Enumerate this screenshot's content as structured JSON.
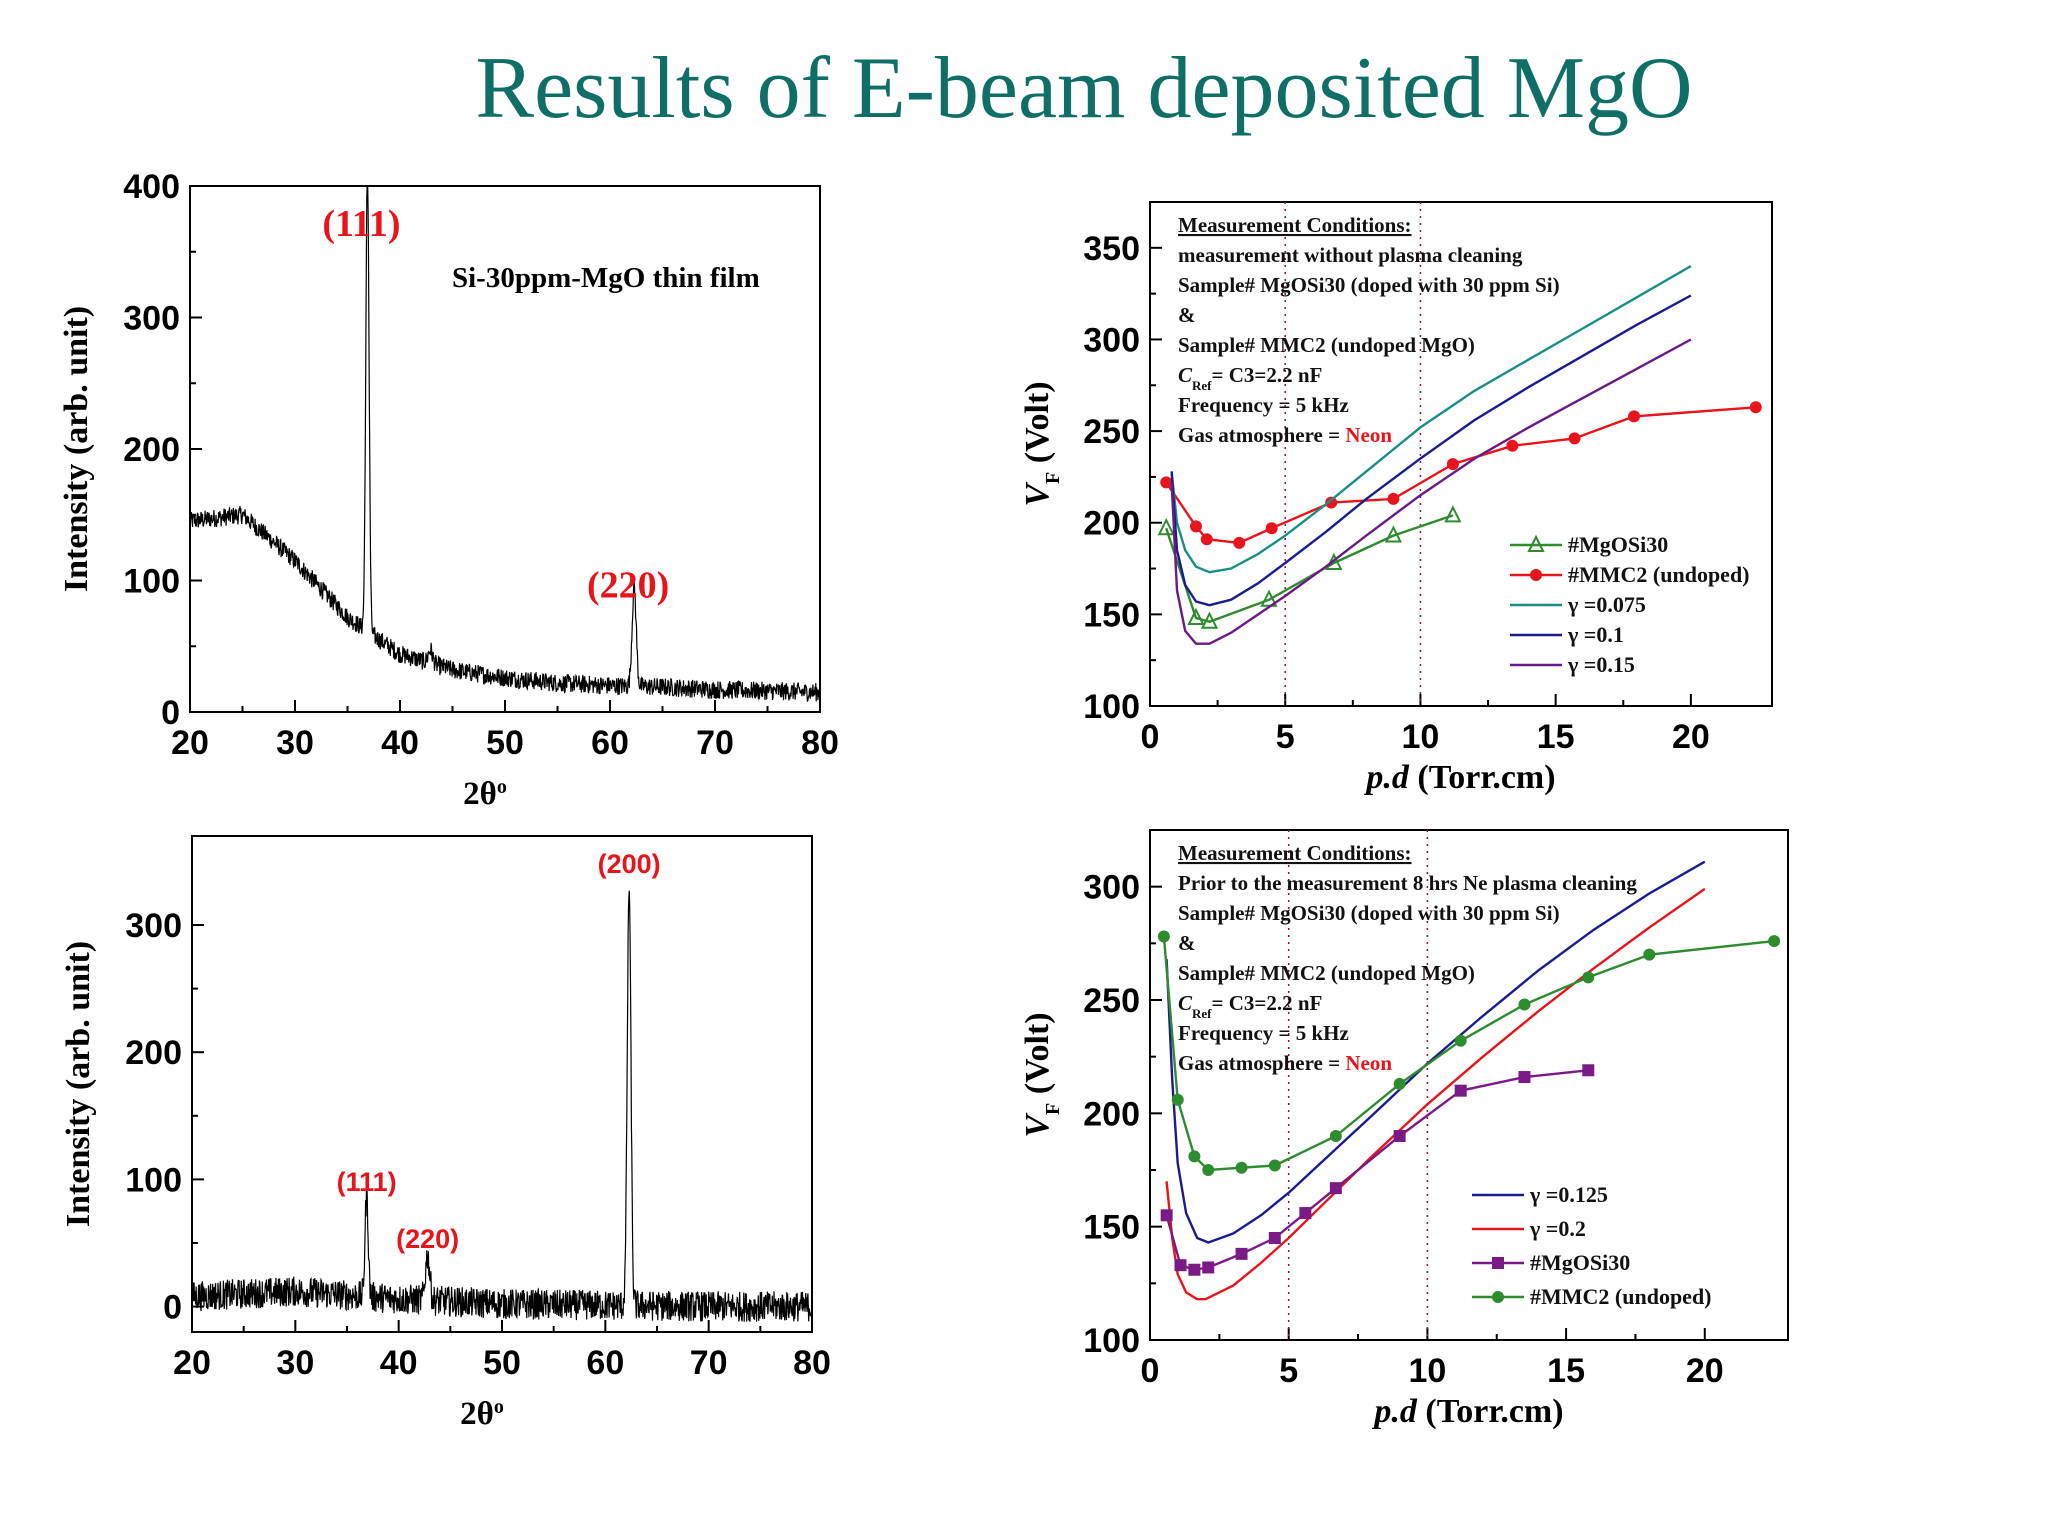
{
  "slide": {
    "title": "Results of E-beam deposited MgO"
  },
  "chart_data": [
    {
      "id": "xrd1",
      "type": "line",
      "xlabel": "2θ",
      "xlabel_sup": "o",
      "ylabel": "Intensity (arb. unit)",
      "xlim": [
        20,
        80
      ],
      "ylim": [
        0,
        400
      ],
      "xticks": [
        20,
        30,
        40,
        50,
        60,
        70,
        80
      ],
      "yticks": [
        0,
        100,
        200,
        300,
        400
      ],
      "annotation": "Si-30ppm-MgO thin film",
      "peaks": [
        {
          "label": "(111)",
          "x": 36.9,
          "y": 350,
          "width": 0.22
        },
        {
          "label": "(220)",
          "x": 62.3,
          "y": 75,
          "width": 0.28
        }
      ],
      "extra_bumps": [
        {
          "x": 42.9,
          "y": 10,
          "width": 0.3
        }
      ],
      "background": {
        "x": [
          20,
          25,
          30,
          35,
          40,
          45,
          50,
          55,
          60,
          65,
          70,
          75,
          80
        ],
        "y": [
          145,
          150,
          115,
          72,
          44,
          32,
          26,
          22,
          20,
          19,
          17,
          16,
          15
        ],
        "noise": 7
      },
      "peak_label_color": "#e8141b"
    },
    {
      "id": "xrd2",
      "type": "line",
      "xlabel": "2θ",
      "xlabel_sup": "o",
      "ylabel": "Intensity (arb. unit)",
      "xlim": [
        20,
        80
      ],
      "ylim": [
        -20,
        370
      ],
      "xticks": [
        20,
        30,
        40,
        50,
        60,
        70,
        80
      ],
      "yticks": [
        0,
        100,
        200,
        300
      ],
      "peaks": [
        {
          "label": "(111)",
          "x": 36.9,
          "y": 80,
          "width": 0.22
        },
        {
          "label": "(220)",
          "x": 42.8,
          "y": 35,
          "width": 0.3
        },
        {
          "label": "(200)",
          "x": 62.3,
          "y": 330,
          "width": 0.25
        }
      ],
      "background": {
        "x": [
          20,
          30,
          40,
          50,
          60,
          70,
          80
        ],
        "y": [
          8,
          12,
          6,
          2,
          1,
          0,
          0
        ],
        "noise": 12
      },
      "peak_label_color": "#e8141b"
    },
    {
      "id": "vf1",
      "type": "scatter",
      "xlabel": "p.d (Torr.cm)",
      "ylabel_main": "V",
      "ylabel_sub": "F",
      "ylabel_rest": " (Volt)",
      "xlim": [
        0,
        23
      ],
      "ylim": [
        100,
        375
      ],
      "xticks": [
        0,
        5,
        10,
        15,
        20
      ],
      "yticks": [
        100,
        150,
        200,
        250,
        300,
        350
      ],
      "vlines": [
        5,
        10
      ],
      "conditions": {
        "heading": "Measurement Conditions:",
        "lines": [
          "measurement without plasma cleaning",
          "Sample# MgOSi30 (doped with 30 ppm Si)",
          "&",
          "Sample# MMC2 (undoped MgO)"
        ],
        "cref_main": "C",
        "cref_sub": "Ref",
        "cref_rest": "= C3=2.2 nF",
        "frequency": "Frequency = 5 kHz",
        "gas_prefix": "Gas atmosphere = ",
        "gas_value": "Neon"
      },
      "series": [
        {
          "name": "#MgOSi30",
          "kind": "points",
          "marker": "triangle",
          "color": "#2e8b2e",
          "x": [
            0.6,
            1.7,
            2.2,
            4.4,
            6.8,
            9.0,
            11.2
          ],
          "y": [
            197,
            148,
            146,
            158,
            178,
            193,
            204
          ]
        },
        {
          "name": "#MMC2 (undoped)",
          "kind": "points",
          "marker": "circle",
          "color": "#e8141b",
          "x": [
            0.6,
            1.7,
            2.1,
            3.3,
            4.5,
            6.7,
            9.0,
            11.2,
            13.4,
            15.7,
            17.9,
            22.4
          ],
          "y": [
            222,
            198,
            191,
            189,
            197,
            211,
            213,
            232,
            242,
            246,
            258,
            263
          ]
        },
        {
          "name": "γ =0.075",
          "kind": "line",
          "color": "#178f86",
          "x": [
            0.8,
            1.0,
            1.3,
            1.7,
            2.2,
            3.0,
            4.0,
            5.0,
            6.5,
            8.0,
            10.0,
            12.0,
            14.0,
            16.0,
            18.0,
            20.0
          ],
          "y": [
            228,
            200,
            185,
            176,
            173,
            175,
            183,
            193,
            210,
            228,
            252,
            272,
            289,
            306,
            323,
            340
          ]
        },
        {
          "name": "γ =0.1",
          "kind": "line",
          "color": "#1b1b8f",
          "x": [
            0.8,
            1.0,
            1.3,
            1.7,
            2.2,
            3.0,
            4.0,
            5.0,
            6.5,
            8.0,
            10.0,
            12.0,
            14.0,
            16.0,
            18.0,
            20.0
          ],
          "y": [
            228,
            185,
            166,
            157,
            155,
            158,
            167,
            178,
            195,
            213,
            235,
            256,
            274,
            291,
            308,
            324
          ]
        },
        {
          "name": "γ =0.15",
          "kind": "line",
          "color": "#6a1a86",
          "x": [
            0.8,
            1.0,
            1.3,
            1.7,
            2.2,
            3.0,
            4.0,
            5.0,
            6.5,
            8.0,
            10.0,
            12.0,
            14.0,
            16.0,
            18.0,
            20.0
          ],
          "y": [
            222,
            163,
            141,
            134,
            134,
            140,
            150,
            160,
            176,
            193,
            215,
            235,
            252,
            268,
            284,
            300
          ]
        }
      ],
      "legend_position": "lower-right"
    },
    {
      "id": "vf2",
      "type": "scatter",
      "xlabel": "p.d (Torr.cm)",
      "ylabel_main": "V",
      "ylabel_sub": "F",
      "ylabel_rest": " (Volt)",
      "xlim": [
        0,
        23
      ],
      "ylim": [
        100,
        325
      ],
      "xticks": [
        0,
        5,
        10,
        15,
        20
      ],
      "yticks": [
        100,
        150,
        200,
        250,
        300
      ],
      "vlines": [
        5,
        10
      ],
      "conditions": {
        "heading": "Measurement Conditions:",
        "lines": [
          "Prior to the measurement 8 hrs Ne plasma cleaning",
          "Sample# MgOSi30 (doped with 30 ppm Si)",
          "&",
          "Sample# MMC2 (undoped MgO)"
        ],
        "cref_main": "C",
        "cref_sub": "Ref",
        "cref_rest": "= C3=2.2 nF",
        "frequency": "Frequency = 5 kHz",
        "gas_prefix": "Gas atmosphere = ",
        "gas_value": "Neon"
      },
      "series": [
        {
          "name": "γ =0.125",
          "kind": "line",
          "color": "#1b1b8f",
          "x": [
            0.6,
            0.8,
            1.0,
            1.3,
            1.7,
            2.1,
            3.0,
            4.0,
            5.0,
            6.5,
            8.0,
            10.0,
            12.0,
            14.0,
            16.0,
            18.0,
            20.0
          ],
          "y": [
            268,
            215,
            178,
            156,
            145,
            143,
            147,
            155,
            165,
            182,
            199,
            222,
            243,
            263,
            281,
            297,
            311
          ]
        },
        {
          "name": "γ =0.2",
          "kind": "line",
          "color": "#e8141b",
          "x": [
            0.6,
            0.8,
            1.0,
            1.3,
            1.7,
            2.0,
            3.0,
            4.0,
            5.0,
            6.5,
            8.0,
            10.0,
            12.0,
            14.0,
            16.0,
            18.0,
            20.0
          ],
          "y": [
            170,
            145,
            129,
            121,
            118,
            118,
            124,
            134,
            145,
            163,
            181,
            204,
            225,
            245,
            264,
            282,
            299
          ]
        },
        {
          "name": "#MgOSi30",
          "kind": "points",
          "marker": "square",
          "color": "#7a1a86",
          "x": [
            0.6,
            1.1,
            1.6,
            2.1,
            3.3,
            4.5,
            5.6,
            6.7,
            9.0,
            11.2,
            13.5,
            15.8
          ],
          "y": [
            155,
            133,
            131,
            132,
            138,
            145,
            156,
            167,
            190,
            210,
            216,
            219
          ]
        },
        {
          "name": "#MMC2 (undoped)",
          "kind": "points",
          "marker": "circle",
          "color": "#2e8b2e",
          "x": [
            0.5,
            1.0,
            1.6,
            2.1,
            3.3,
            4.5,
            6.7,
            9.0,
            11.2,
            13.5,
            15.8,
            18.0,
            22.5
          ],
          "y": [
            278,
            206,
            181,
            175,
            176,
            177,
            190,
            213,
            232,
            248,
            260,
            270,
            276
          ]
        }
      ],
      "legend_position": "lower-right"
    }
  ]
}
